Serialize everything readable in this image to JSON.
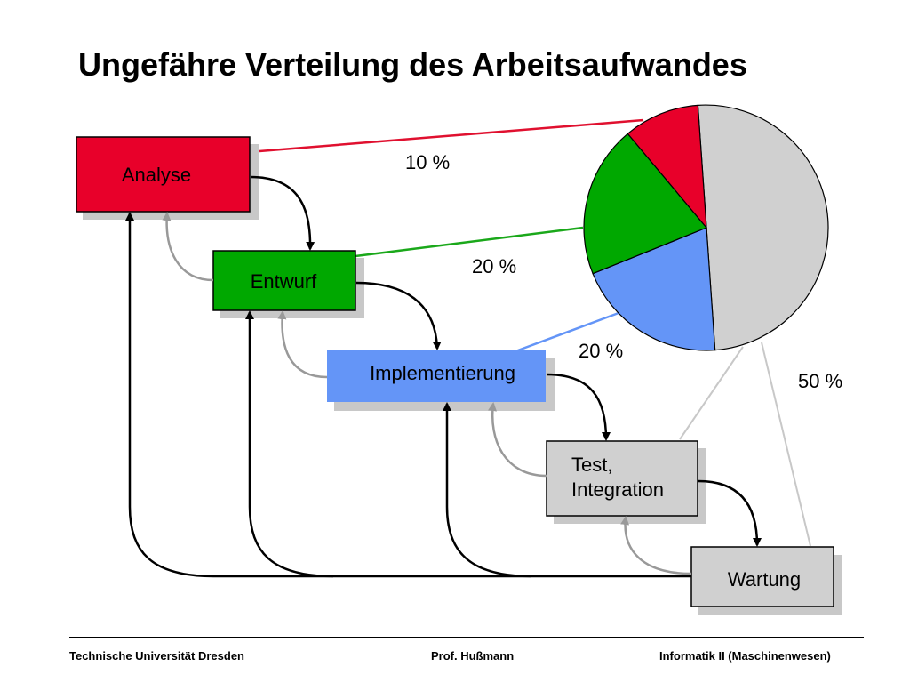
{
  "title": "Ungefähre Verteilung des Arbeitsaufwandes",
  "boxes": {
    "analyse": {
      "label": "Analyse",
      "color": "#e8002a"
    },
    "entwurf": {
      "label": "Entwurf",
      "color": "#00a800"
    },
    "implementierung": {
      "label": "Implementierung",
      "color": "#6495f7"
    },
    "test": {
      "label_line1": "Test,",
      "label_line2": "Integration",
      "color": "#d0d0d0"
    },
    "wartung": {
      "label": "Wartung",
      "color": "#d0d0d0"
    }
  },
  "percentages": {
    "analyse": "10 %",
    "entwurf": "20 %",
    "implementierung": "20 %",
    "wartung": "50 %"
  },
  "chart_data": {
    "type": "pie",
    "categories": [
      "Analyse",
      "Entwurf",
      "Implementierung",
      "Test, Integration / Wartung"
    ],
    "values": [
      10,
      20,
      20,
      50
    ],
    "colors": [
      "#e8002a",
      "#00a800",
      "#6495f7",
      "#d0d0d0"
    ],
    "value_labels": [
      "10 %",
      "20 %",
      "20 %",
      "50 %"
    ]
  },
  "footer": {
    "left": "Technische Universität Dresden",
    "center": "Prof. Hußmann",
    "right": "Informatik II (Maschinenwesen)"
  }
}
